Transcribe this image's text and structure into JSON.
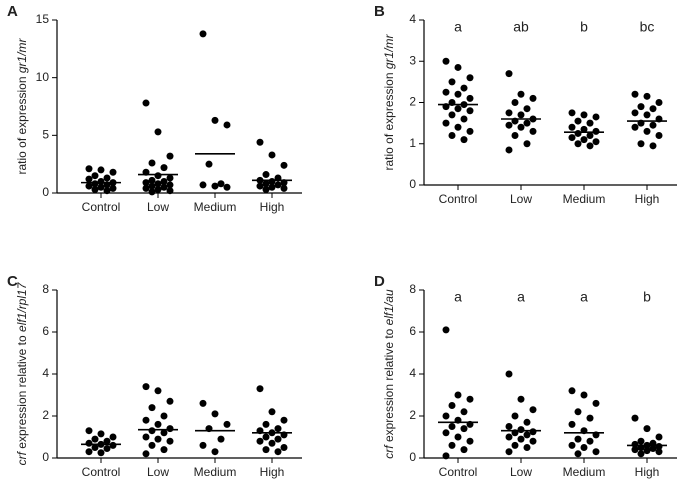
{
  "chart_data": [
    {
      "type": "strip",
      "panel": "A",
      "ylabel": [
        {
          "text": "ratio of expression ",
          "italic": false
        },
        {
          "text": "gr1/mr",
          "italic": true
        }
      ],
      "categories": [
        "Control",
        "Low",
        "Medium",
        "High"
      ],
      "ylim": [
        0,
        15
      ],
      "yticks": [
        0,
        5,
        10,
        15
      ],
      "color": "#000000",
      "points": [
        [
          2.1,
          2.0,
          1.8,
          1.5,
          1.3,
          1.2,
          1.0,
          0.9,
          0.8,
          0.7,
          0.6,
          0.5,
          0.4,
          0.3,
          0.2
        ],
        [
          7.8,
          5.3,
          3.2,
          2.6,
          2.2,
          1.8,
          1.5,
          1.3,
          1.1,
          1.0,
          0.9,
          0.8,
          0.7,
          0.6,
          0.5,
          0.4,
          0.3,
          0.2,
          0.1
        ],
        [
          13.8,
          6.3,
          5.9,
          2.5,
          0.8,
          0.7,
          0.6,
          0.5
        ],
        [
          4.4,
          3.3,
          2.4,
          1.6,
          1.3,
          1.1,
          1.0,
          0.9,
          0.8,
          0.7,
          0.6,
          0.5,
          0.4,
          0.3
        ]
      ],
      "means": [
        0.9,
        1.6,
        3.4,
        1.1
      ]
    },
    {
      "type": "strip",
      "panel": "B",
      "ylabel": [
        {
          "text": "ratio of expression  ",
          "italic": false
        },
        {
          "text": "gr1/mr",
          "italic": true
        }
      ],
      "categories": [
        "Control",
        "Low",
        "Medium",
        "High"
      ],
      "ylim": [
        0,
        4
      ],
      "yticks": [
        0,
        1,
        2,
        3,
        4
      ],
      "color": "#000000",
      "letters": [
        "a",
        "ab",
        "b",
        "bc"
      ],
      "points": [
        [
          3.0,
          2.85,
          2.6,
          2.5,
          2.35,
          2.25,
          2.2,
          2.1,
          2.0,
          1.95,
          1.9,
          1.85,
          1.8,
          1.7,
          1.6,
          1.5,
          1.4,
          1.3,
          1.2,
          1.1
        ],
        [
          2.7,
          2.2,
          2.1,
          2.0,
          1.85,
          1.75,
          1.7,
          1.6,
          1.55,
          1.5,
          1.45,
          1.4,
          1.3,
          1.2,
          1.0,
          0.85
        ],
        [
          1.75,
          1.7,
          1.65,
          1.55,
          1.5,
          1.4,
          1.35,
          1.3,
          1.25,
          1.2,
          1.15,
          1.1,
          1.05,
          1.0,
          0.95
        ],
        [
          2.2,
          2.15,
          2.0,
          1.9,
          1.85,
          1.75,
          1.7,
          1.6,
          1.5,
          1.45,
          1.4,
          1.3,
          1.2,
          1.0,
          0.95
        ]
      ],
      "means": [
        1.95,
        1.6,
        1.28,
        1.55
      ]
    },
    {
      "type": "strip",
      "panel": "C",
      "ylabel": [
        {
          "text": "crf",
          "italic": true
        },
        {
          "text": " expression relative to ",
          "italic": false
        },
        {
          "text": "elf1/rpl17",
          "italic": true
        }
      ],
      "categories": [
        "Control",
        "Low",
        "Medium",
        "High"
      ],
      "ylim": [
        0,
        8
      ],
      "yticks": [
        0,
        2,
        4,
        6,
        8
      ],
      "color": "#000000",
      "points": [
        [
          1.3,
          1.15,
          1.0,
          0.9,
          0.8,
          0.7,
          0.65,
          0.6,
          0.5,
          0.45,
          0.3,
          0.25
        ],
        [
          3.4,
          3.2,
          2.7,
          2.4,
          2.0,
          1.8,
          1.6,
          1.4,
          1.3,
          1.2,
          1.0,
          0.9,
          0.8,
          0.6,
          0.4,
          0.2
        ],
        [
          2.6,
          2.1,
          1.6,
          1.4,
          0.9,
          0.6,
          0.3
        ],
        [
          3.3,
          2.2,
          1.8,
          1.6,
          1.4,
          1.3,
          1.2,
          1.1,
          1.0,
          0.9,
          0.8,
          0.7,
          0.5,
          0.4,
          0.3
        ]
      ],
      "means": [
        0.65,
        1.35,
        1.3,
        1.2
      ]
    },
    {
      "type": "strip",
      "panel": "D",
      "ylabel": [
        {
          "text": "crf",
          "italic": true
        },
        {
          "text": " expression relative to ",
          "italic": false
        },
        {
          "text": "elf1/au",
          "italic": true
        }
      ],
      "categories": [
        "Control",
        "Low",
        "Medium",
        "High"
      ],
      "ylim": [
        0,
        8
      ],
      "yticks": [
        0,
        2,
        4,
        6,
        8
      ],
      "color": "#000000",
      "letters": [
        "a",
        "a",
        "a",
        "b"
      ],
      "points": [
        [
          6.1,
          3.0,
          2.8,
          2.5,
          2.2,
          2.0,
          1.8,
          1.6,
          1.5,
          1.4,
          1.2,
          1.0,
          0.8,
          0.6,
          0.4,
          0.1
        ],
        [
          4.0,
          2.8,
          2.3,
          2.0,
          1.7,
          1.5,
          1.35,
          1.25,
          1.2,
          1.1,
          1.0,
          0.9,
          0.8,
          0.6,
          0.5,
          0.3
        ],
        [
          3.2,
          3.0,
          2.6,
          2.2,
          1.9,
          1.6,
          1.3,
          1.1,
          0.9,
          0.8,
          0.6,
          0.5,
          0.3,
          0.2
        ],
        [
          1.9,
          1.4,
          1.0,
          0.8,
          0.7,
          0.65,
          0.6,
          0.55,
          0.5,
          0.45,
          0.4,
          0.35,
          0.3,
          0.2
        ]
      ],
      "means": [
        1.7,
        1.3,
        1.2,
        0.6
      ]
    }
  ]
}
